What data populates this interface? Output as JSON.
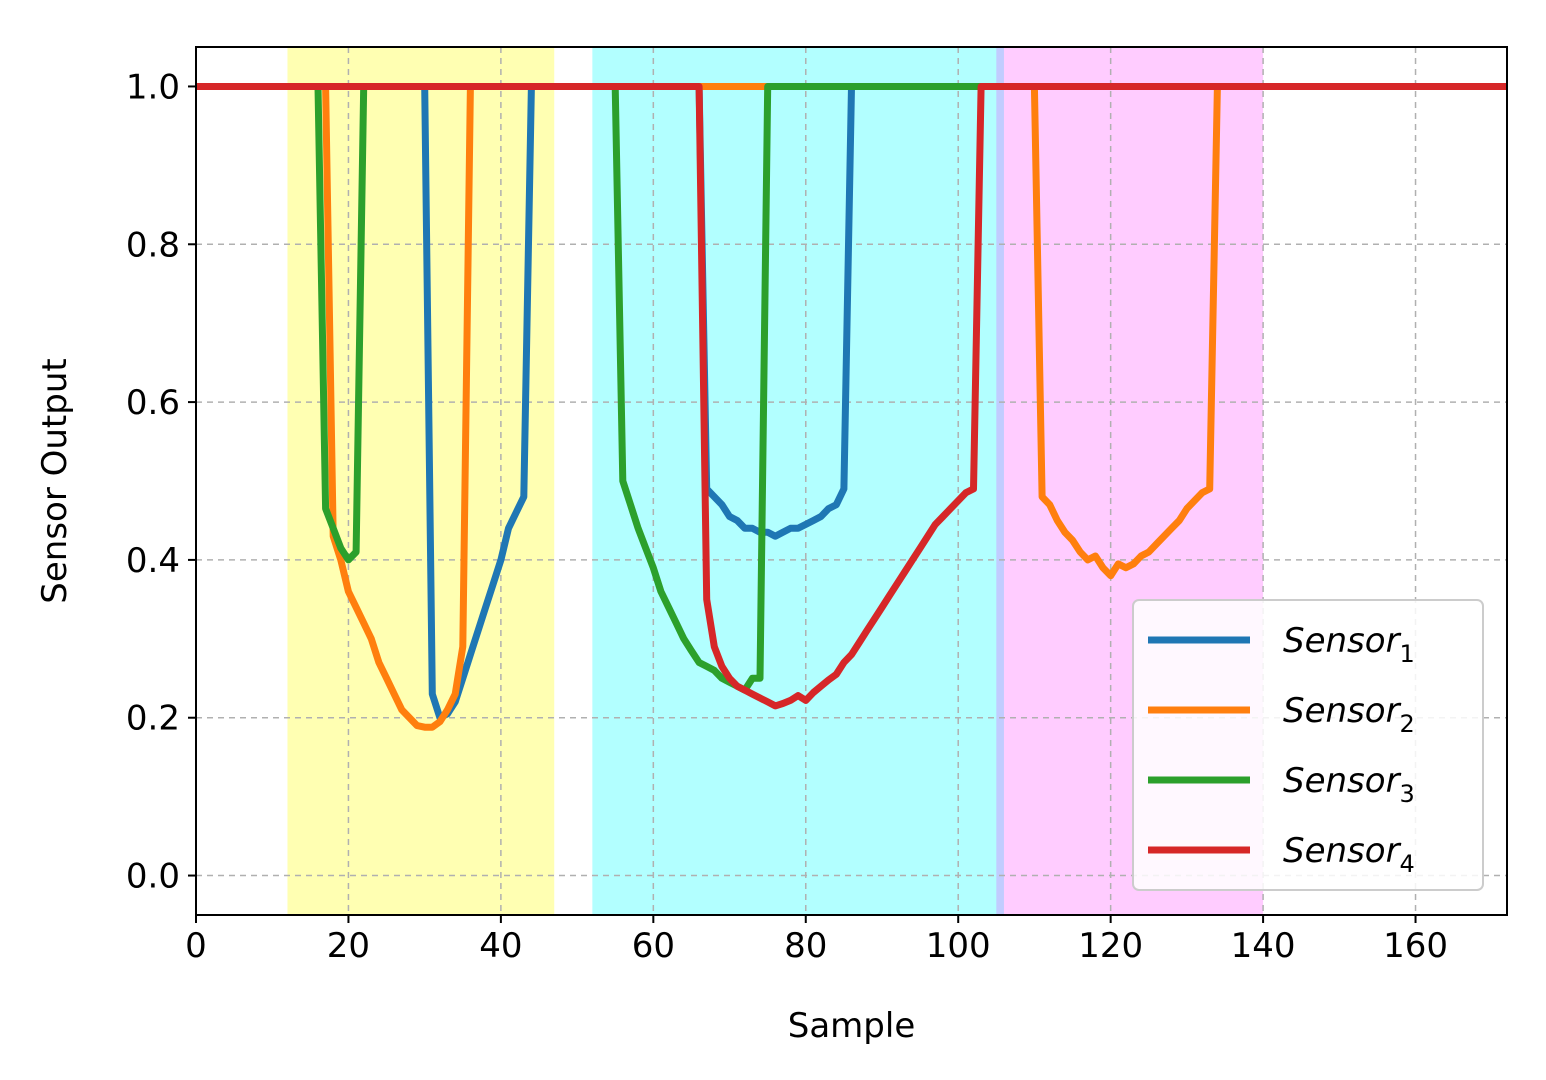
{
  "chart_data": {
    "type": "line",
    "xlabel": "Sample",
    "ylabel": "Sensor Output",
    "xlim": [
      0,
      172
    ],
    "ylim": [
      -0.05,
      1.05
    ],
    "xticks": [
      0,
      20,
      40,
      60,
      80,
      100,
      120,
      140,
      160
    ],
    "yticks": [
      0.0,
      0.2,
      0.4,
      0.6,
      0.8,
      1.0
    ],
    "xtick_labels": [
      "0",
      "20",
      "40",
      "60",
      "80",
      "100",
      "120",
      "140",
      "160"
    ],
    "ytick_labels": [
      "0.0",
      "0.2",
      "0.4",
      "0.6",
      "0.8",
      "1.0"
    ],
    "grid": true,
    "legend_position": "lower-right",
    "shaded_regions": [
      {
        "x_start": 12,
        "x_end": 47,
        "color": "#ffff00",
        "opacity": 0.3
      },
      {
        "x_start": 52,
        "x_end": 106,
        "color": "#00ffff",
        "opacity": 0.3
      },
      {
        "x_start": 105,
        "x_end": 140,
        "color": "#ff00ff",
        "opacity": 0.2
      }
    ],
    "series": [
      {
        "name": "Sensor",
        "subscript": "1",
        "color": "#1f77b4",
        "x": [
          0,
          30,
          31,
          32,
          33,
          34,
          35,
          36,
          37,
          38,
          39,
          40,
          41,
          42,
          43,
          44,
          66,
          67,
          68,
          69,
          70,
          71,
          72,
          73,
          74,
          75,
          76,
          77,
          78,
          79,
          80,
          81,
          82,
          83,
          84,
          85,
          86,
          172
        ],
        "y": [
          1.0,
          1.0,
          0.23,
          0.2,
          0.205,
          0.22,
          0.25,
          0.28,
          0.31,
          0.34,
          0.37,
          0.4,
          0.44,
          0.46,
          0.48,
          1.0,
          1.0,
          0.49,
          0.48,
          0.47,
          0.455,
          0.45,
          0.44,
          0.44,
          0.435,
          0.435,
          0.43,
          0.435,
          0.44,
          0.44,
          0.445,
          0.45,
          0.455,
          0.465,
          0.47,
          0.49,
          1.0,
          1.0
        ]
      },
      {
        "name": "Sensor",
        "subscript": "2",
        "color": "#ff7f0e",
        "x": [
          0,
          17,
          18,
          19,
          20,
          21,
          22,
          23,
          24,
          25,
          26,
          27,
          28,
          29,
          30,
          31,
          32,
          33,
          34,
          35,
          36,
          110,
          111,
          112,
          113,
          114,
          115,
          116,
          117,
          118,
          119,
          120,
          121,
          122,
          123,
          124,
          125,
          126,
          127,
          128,
          129,
          130,
          131,
          132,
          133,
          134,
          172
        ],
        "y": [
          1.0,
          1.0,
          0.43,
          0.4,
          0.36,
          0.34,
          0.32,
          0.3,
          0.27,
          0.25,
          0.23,
          0.21,
          0.2,
          0.19,
          0.188,
          0.188,
          0.195,
          0.21,
          0.23,
          0.29,
          1.0,
          1.0,
          0.48,
          0.47,
          0.45,
          0.435,
          0.425,
          0.41,
          0.4,
          0.405,
          0.39,
          0.38,
          0.395,
          0.39,
          0.395,
          0.405,
          0.41,
          0.42,
          0.43,
          0.44,
          0.45,
          0.465,
          0.475,
          0.485,
          0.49,
          1.0,
          1.0
        ]
      },
      {
        "name": "Sensor",
        "subscript": "3",
        "color": "#2ca02c",
        "x": [
          0,
          16,
          17,
          18,
          19,
          20,
          21,
          22,
          55,
          56,
          57,
          58,
          59,
          60,
          61,
          62,
          63,
          64,
          65,
          66,
          67,
          68,
          69,
          70,
          71,
          72,
          73,
          74,
          75,
          76,
          172
        ],
        "y": [
          1.0,
          1.0,
          0.465,
          0.44,
          0.415,
          0.4,
          0.41,
          1.0,
          1.0,
          0.5,
          0.47,
          0.44,
          0.415,
          0.39,
          0.36,
          0.34,
          0.32,
          0.3,
          0.285,
          0.27,
          0.265,
          0.26,
          0.25,
          0.245,
          0.24,
          0.235,
          0.25,
          0.25,
          1.0,
          1.0,
          1.0
        ]
      },
      {
        "name": "Sensor",
        "subscript": "4",
        "color": "#d62728",
        "x": [
          0,
          66,
          67,
          68,
          69,
          70,
          71,
          72,
          73,
          74,
          75,
          76,
          77,
          78,
          79,
          80,
          81,
          82,
          83,
          84,
          85,
          86,
          87,
          88,
          89,
          90,
          91,
          92,
          93,
          94,
          95,
          96,
          97,
          98,
          99,
          100,
          101,
          102,
          103,
          172
        ],
        "y": [
          1.0,
          1.0,
          0.35,
          0.29,
          0.265,
          0.25,
          0.24,
          0.235,
          0.23,
          0.225,
          0.22,
          0.215,
          0.218,
          0.222,
          0.228,
          0.222,
          0.232,
          0.24,
          0.248,
          0.255,
          0.27,
          0.28,
          0.295,
          0.31,
          0.325,
          0.34,
          0.355,
          0.37,
          0.385,
          0.4,
          0.415,
          0.43,
          0.445,
          0.455,
          0.465,
          0.475,
          0.485,
          0.49,
          1.0,
          1.0
        ]
      }
    ]
  }
}
